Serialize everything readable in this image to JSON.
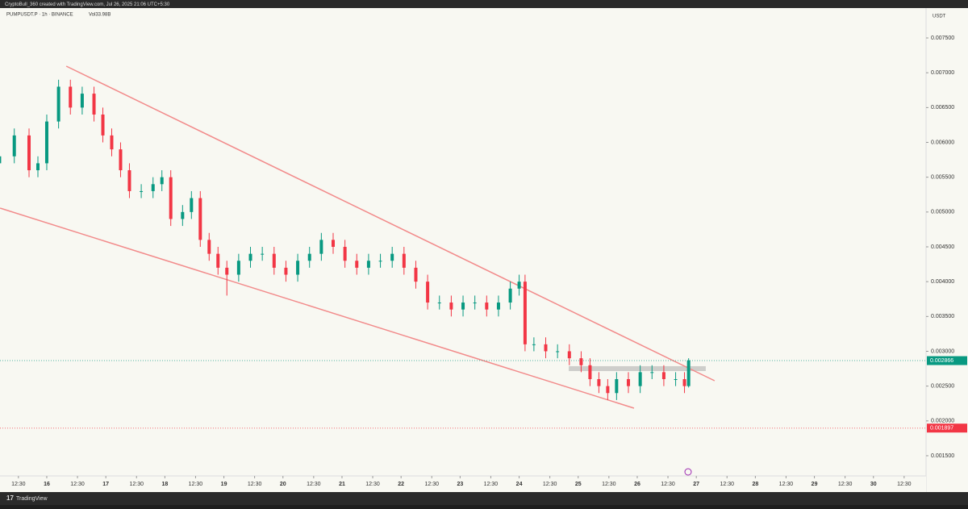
{
  "header": {
    "attribution": "CryptoBull_360 created with TradingView.com, Jul 26, 2025 21:06 UTC+5:30",
    "footer": "TradingView"
  },
  "chart_data": {
    "type": "candlestick",
    "title": "PUMPUSDT.P · 1h · BINANCE",
    "subtitle": "Vol33.98B",
    "y_axis_label": "USDT",
    "colors": {
      "up": "#089981",
      "down": "#f23645",
      "trend": "#f28b8b",
      "zone": "#c9c9c6"
    },
    "x": [
      15.2,
      15.45,
      15.7,
      15.85,
      16.0,
      16.2,
      16.4,
      16.6,
      16.8,
      16.95,
      17.1,
      17.25,
      17.4,
      17.6,
      17.8,
      17.95,
      18.1,
      18.3,
      18.45,
      18.6,
      18.75,
      18.9,
      19.05,
      19.25,
      19.45,
      19.65,
      19.85,
      20.05,
      20.25,
      20.45,
      20.65,
      20.85,
      21.05,
      21.25,
      21.45,
      21.65,
      21.85,
      22.05,
      22.25,
      22.45,
      22.65,
      22.85,
      23.05,
      23.25,
      23.45,
      23.65,
      23.85,
      24.0,
      24.1,
      24.25,
      24.45,
      24.65,
      24.85,
      25.05,
      25.2,
      25.35,
      25.5,
      25.65,
      25.85,
      26.05,
      26.25,
      26.45,
      26.65,
      26.8,
      26.87
    ],
    "open": [
      0.0057,
      0.0058,
      0.0061,
      0.0056,
      0.0057,
      0.0063,
      0.0068,
      0.0065,
      0.0067,
      0.0064,
      0.0061,
      0.0059,
      0.0056,
      0.0053,
      0.0053,
      0.0054,
      0.0055,
      0.0049,
      0.005,
      0.0052,
      0.0046,
      0.0044,
      0.0042,
      0.0041,
      0.0043,
      0.0044,
      0.0044,
      0.0042,
      0.0041,
      0.0043,
      0.0044,
      0.0046,
      0.0045,
      0.0043,
      0.0042,
      0.0043,
      0.0043,
      0.0044,
      0.0042,
      0.004,
      0.0037,
      0.0037,
      0.0036,
      0.0037,
      0.0037,
      0.0036,
      0.0037,
      0.0039,
      0.004,
      0.0031,
      0.0031,
      0.003,
      0.003,
      0.0029,
      0.0028,
      0.0026,
      0.0025,
      0.0024,
      0.0026,
      0.0025,
      0.0027,
      0.0027,
      0.0026,
      0.0026,
      0.0025
    ],
    "high": [
      0.0059,
      0.0062,
      0.0062,
      0.0058,
      0.0064,
      0.0069,
      0.0069,
      0.0068,
      0.0068,
      0.0065,
      0.0062,
      0.006,
      0.0057,
      0.0054,
      0.0055,
      0.0056,
      0.0056,
      0.0051,
      0.0053,
      0.0053,
      0.0047,
      0.0045,
      0.0043,
      0.0044,
      0.0045,
      0.0045,
      0.0045,
      0.0043,
      0.0044,
      0.0045,
      0.0047,
      0.0047,
      0.0046,
      0.0044,
      0.0044,
      0.0044,
      0.0045,
      0.0045,
      0.0043,
      0.0041,
      0.0038,
      0.0038,
      0.0038,
      0.0038,
      0.0038,
      0.0038,
      0.004,
      0.0041,
      0.0041,
      0.0032,
      0.0032,
      0.0031,
      0.0031,
      0.003,
      0.0029,
      0.0027,
      0.0026,
      0.0027,
      0.0027,
      0.0028,
      0.0028,
      0.0028,
      0.0027,
      0.0027,
      0.0029
    ],
    "low": [
      0.0056,
      0.0057,
      0.0055,
      0.0055,
      0.0056,
      0.0062,
      0.0064,
      0.0064,
      0.0063,
      0.006,
      0.0058,
      0.0055,
      0.0052,
      0.0052,
      0.0052,
      0.0053,
      0.0048,
      0.0048,
      0.0049,
      0.0045,
      0.0043,
      0.0041,
      0.0038,
      0.004,
      0.0042,
      0.0043,
      0.0041,
      0.004,
      0.004,
      0.0042,
      0.0043,
      0.0044,
      0.0042,
      0.0041,
      0.0041,
      0.0042,
      0.0042,
      0.0041,
      0.0039,
      0.0036,
      0.0036,
      0.0035,
      0.0035,
      0.0036,
      0.0035,
      0.0035,
      0.0036,
      0.0038,
      0.003,
      0.003,
      0.0029,
      0.0029,
      0.0028,
      0.0027,
      0.0025,
      0.0024,
      0.0023,
      0.0023,
      0.0024,
      0.0024,
      0.0026,
      0.0025,
      0.0025,
      0.0024,
      0.00248
    ],
    "close": [
      0.0058,
      0.0061,
      0.0056,
      0.0057,
      0.0063,
      0.0068,
      0.0065,
      0.0067,
      0.0064,
      0.0061,
      0.0059,
      0.0056,
      0.0053,
      0.0053,
      0.0054,
      0.0055,
      0.0049,
      0.005,
      0.0052,
      0.0046,
      0.0044,
      0.0042,
      0.0041,
      0.0043,
      0.0044,
      0.0044,
      0.0042,
      0.0041,
      0.0043,
      0.0044,
      0.0046,
      0.0045,
      0.0043,
      0.0042,
      0.0043,
      0.0043,
      0.0044,
      0.0042,
      0.004,
      0.0037,
      0.0037,
      0.0036,
      0.0037,
      0.0037,
      0.0036,
      0.0037,
      0.0039,
      0.004,
      0.0031,
      0.0031,
      0.003,
      0.003,
      0.0029,
      0.0028,
      0.0026,
      0.0025,
      0.0024,
      0.0026,
      0.0025,
      0.0027,
      0.0027,
      0.0026,
      0.0026,
      0.0025,
      0.00287
    ],
    "trendlines": [
      {
        "x": [
          16.33,
          27.31
        ],
        "y": [
          0.007095,
          0.002577
        ]
      },
      {
        "x": [
          15.21,
          25.945
        ],
        "y": [
          0.005056,
          0.002183
        ]
      }
    ],
    "zone": {
      "x": [
        24.84,
        27.16
      ],
      "y": [
        0.002786,
        0.002716
      ]
    },
    "price_lines": [
      {
        "value": 0.002866,
        "label": "0.002866",
        "color": "#089981"
      },
      {
        "value": 0.001897,
        "label": "0.001897",
        "color": "#f23645"
      }
    ],
    "xlim": [
      15.208,
      30.891
    ],
    "ylim": [
      0.00121,
      0.007929
    ],
    "yticks": [
      {
        "value": 0.0015,
        "label": "0.001500"
      },
      {
        "value": 0.002,
        "label": "0.002000"
      },
      {
        "value": 0.0025,
        "label": "0.002500"
      },
      {
        "value": 0.003,
        "label": "0.003000"
      },
      {
        "value": 0.0035,
        "label": "0.003500"
      },
      {
        "value": 0.004,
        "label": "0.004000"
      },
      {
        "value": 0.0045,
        "label": "0.004500"
      },
      {
        "value": 0.005,
        "label": "0.005000"
      },
      {
        "value": 0.0055,
        "label": "0.005500"
      },
      {
        "value": 0.006,
        "label": "0.006000"
      },
      {
        "value": 0.0065,
        "label": "0.006500"
      },
      {
        "value": 0.007,
        "label": "0.007000"
      },
      {
        "value": 0.0075,
        "label": "0.007500"
      }
    ],
    "xticks": [
      {
        "value": 15.52,
        "label": "12:30"
      },
      16,
      {
        "value": 16.52,
        "label": "12:30"
      },
      17,
      {
        "value": 17.52,
        "label": "12:30"
      },
      18,
      {
        "value": 18.52,
        "label": "12:30"
      },
      19,
      {
        "value": 19.52,
        "label": "12:30"
      },
      20,
      {
        "value": 20.52,
        "label": "12:30"
      },
      21,
      {
        "value": 21.52,
        "label": "12:30"
      },
      22,
      {
        "value": 22.52,
        "label": "12:30"
      },
      23,
      {
        "value": 23.52,
        "label": "12:30"
      },
      24,
      {
        "value": 24.52,
        "label": "12:30"
      },
      25,
      {
        "value": 25.52,
        "label": "12:30"
      },
      26,
      {
        "value": 26.52,
        "label": "12:30"
      },
      27,
      {
        "value": 27.52,
        "label": "12:30"
      },
      28,
      {
        "value": 28.52,
        "label": "12:30"
      },
      29,
      {
        "value": 29.52,
        "label": "12:30"
      },
      30,
      {
        "value": 30.52,
        "label": "12:30"
      }
    ]
  }
}
